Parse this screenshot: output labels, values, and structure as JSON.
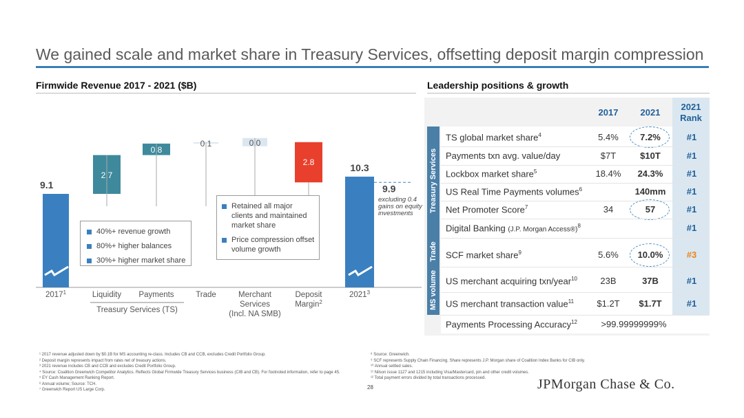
{
  "title": "We gained scale and market share in Treasury Services, offsetting deposit margin compression",
  "left_section": {
    "title": "Firmwide Revenue 2017 - 2021 ($B)",
    "box1": [
      "40%+ revenue growth",
      "80%+ higher balances",
      "30%+ higher market share"
    ],
    "box2": [
      "Retained all major clients and maintained market share",
      "Price compression offset volume growth"
    ],
    "note": "excluding 0.4 gains on equity investments",
    "ts_group_label": "Treasury Services (TS)",
    "footnote_sups": {
      "2017": "1",
      "deposit": "2",
      "2021": "3"
    }
  },
  "chart_data": {
    "type": "waterfall",
    "title": "Firmwide Revenue 2017 - 2021 ($B)",
    "categories": [
      "2017",
      "Liquidity",
      "Payments",
      "Trade",
      "Merchant Services (Incl. NA SMB)",
      "Deposit Margin",
      "2021"
    ],
    "axis_labels": [
      "2017",
      "Liquidity",
      "Payments",
      "Trade",
      "Merchant\nServices\n(Incl. NA SMB)",
      "Deposit\nMargin",
      "2021"
    ],
    "values": [
      9.1,
      2.7,
      0.8,
      0.1,
      0.0,
      -2.8,
      10.3
    ],
    "value_labels": [
      "9.1",
      "2.7",
      "0.8",
      "0.1",
      "0.0",
      "2.8",
      "10.3"
    ],
    "kinds": [
      "total",
      "increase",
      "increase",
      "increase",
      "increase",
      "decrease",
      "total"
    ],
    "adjusted_2021": 9.9,
    "adjusted_label": "9.9",
    "colors": {
      "total": "#3a80c0",
      "increase": "#3e8a9c",
      "decrease": "#e8402c",
      "tiny": "#dbe7f0"
    }
  },
  "right_section": {
    "title": "Leadership positions & growth",
    "headers": {
      "y2017": "2017",
      "y2021": "2021",
      "rank_l1": "2021",
      "rank_l2": "Rank"
    },
    "groups": {
      "treasury": "Treasury Services",
      "trade": "Trade",
      "ms": "MS volume"
    },
    "rows": [
      {
        "label": "TS global market share",
        "sup": "4",
        "v2017": "5.4%",
        "v2021": "7.2%",
        "rank": "#1",
        "circled": true
      },
      {
        "label": "Payments txn avg. value/day",
        "sup": "",
        "v2017": "$7T",
        "v2021": "$10T",
        "rank": "#1",
        "circled": false
      },
      {
        "label": "Lockbox market share",
        "sup": "5",
        "v2017": "18.4%",
        "v2021": "24.3%",
        "rank": "#1",
        "circled": false
      },
      {
        "label": "US Real Time Payments volumes",
        "sup": "6",
        "v2017": "",
        "v2021": "140mm",
        "rank": "#1",
        "circled": false
      },
      {
        "label": "Net Promoter Score",
        "sup": "7",
        "v2017": "34",
        "v2021": "57",
        "rank": "#1",
        "circled": true
      },
      {
        "label": "Digital Banking ",
        "label_small": "(J.P. Morgan Access®)",
        "sup": "8",
        "v2017": "",
        "v2021": "",
        "rank": "#1",
        "circled": false
      },
      {
        "label": "SCF market share",
        "sup": "9",
        "v2017": "5.6%",
        "v2021": "10.0%",
        "rank": "#3",
        "circled": true
      },
      {
        "label": "US merchant acquiring txn/year",
        "sup": "10",
        "v2017": "23B",
        "v2021": "37B",
        "rank": "#1",
        "circled": false
      },
      {
        "label": "US merchant transaction value",
        "sup": "11",
        "v2017": "$1.2T",
        "v2021": "$1.7T",
        "rank": "#1",
        "circled": false
      },
      {
        "label": "Payments Processing Accuracy",
        "sup": "12",
        "merged": ">99.99999999%"
      }
    ]
  },
  "footnotes_left": [
    "¹ 2017 revenue adjusted down by $0.1B for MS accounting re-class. Includes CB and CCB, excludes Credit Portfolio Group.",
    "² Deposit margin represents impact from rates net of treasury actions.",
    "³ 2021 revenue includes CB and CCB and excludes Credit Portfolio Group.",
    "⁴ Source: Coalition Greenwich Competitor Analytics. Reflects Global Firmwide Treasury Services business (CIB and CB). For footnoted information, refer to page 45.",
    "⁵ EY Cash Management Ranking Report.",
    "⁶ Annual volume; Source: TCH.",
    "⁷ Greenwich Report US Large Corp."
  ],
  "footnotes_right": [
    "⁸ Source: Greenwich.",
    "⁹ SCF represents Supply Chain Financing. Share represents J.P. Morgan share of Coalition Index Banks for CIB only.",
    "¹⁰ Annual settled sales.",
    "¹¹ Nilson issue 1127 and 1215 including Visa/Mastercard, pin and other credit volumes.",
    "¹² Total payment errors divided by total transactions processed."
  ],
  "page_number": "28",
  "logo": "JPMorgan Chase & Co."
}
